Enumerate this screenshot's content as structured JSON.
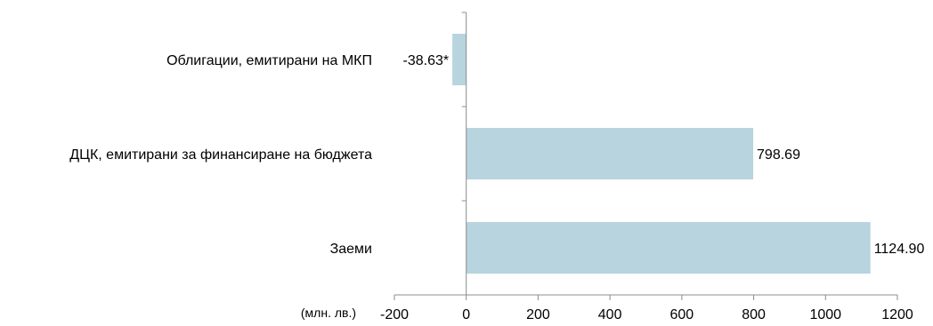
{
  "chart_data": {
    "type": "bar",
    "orientation": "horizontal",
    "categories": [
      "Облигации, емитирани на МКП",
      "ДЦК, емитирани за финансиране на бюджета",
      "Заеми"
    ],
    "values": [
      -38.63,
      798.69,
      1124.9
    ],
    "data_labels": [
      "-38.63*",
      "798.69",
      "1124.90"
    ],
    "xlim": [
      -200,
      1200
    ],
    "x_ticks": [
      -200,
      0,
      200,
      400,
      600,
      800,
      1000,
      1200
    ],
    "x_tick_labels": [
      "-200",
      "0",
      "200",
      "400",
      "600",
      "800",
      "1000",
      "1200"
    ],
    "unit_label": "(млн. лв.)",
    "grid": false,
    "legend": "none",
    "bar_color": "#b7d4df",
    "axis_color": "#8c8c8c"
  }
}
